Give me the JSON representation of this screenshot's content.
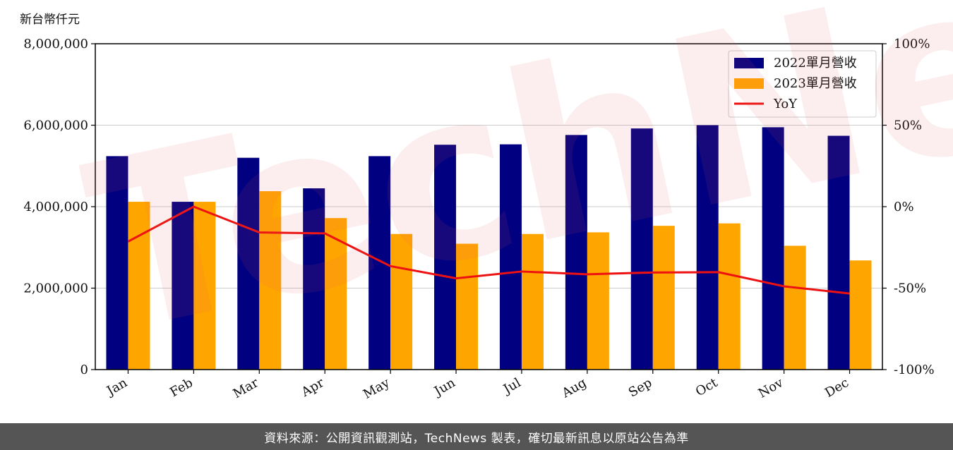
{
  "chart_data": {
    "type": "bar",
    "unit_label": "新台幣仟元",
    "categories": [
      "Jan",
      "Feb",
      "Mar",
      "Apr",
      "May",
      "Jun",
      "Jul",
      "Aug",
      "Sep",
      "Oct",
      "Nov",
      "Dec"
    ],
    "series": [
      {
        "name": "2022單月營收",
        "type": "bar",
        "axis": "left",
        "color": "#000080",
        "values": [
          5240000,
          4120000,
          5200000,
          4450000,
          5240000,
          5520000,
          5530000,
          5760000,
          5920000,
          6000000,
          5950000,
          5740000
        ]
      },
      {
        "name": "2023單月營收",
        "type": "bar",
        "axis": "left",
        "color": "#FFA500",
        "values": [
          4120000,
          4120000,
          4380000,
          3720000,
          3330000,
          3090000,
          3330000,
          3370000,
          3530000,
          3590000,
          3040000,
          2680000
        ]
      },
      {
        "name": "YoY",
        "type": "line",
        "axis": "right",
        "color": "#EE1111",
        "values": [
          -21.4,
          0.0,
          -15.8,
          -16.4,
          -36.5,
          -44.0,
          -39.8,
          -41.5,
          -40.4,
          -40.2,
          -48.9,
          -53.3
        ]
      }
    ],
    "left_axis": {
      "min": 0,
      "max": 8000000,
      "ticks": [
        {
          "v": 0,
          "label": "0"
        },
        {
          "v": 2000000,
          "label": "2,000,000"
        },
        {
          "v": 4000000,
          "label": "4,000,000"
        },
        {
          "v": 6000000,
          "label": "6,000,000"
        },
        {
          "v": 8000000,
          "label": "8,000,000"
        }
      ]
    },
    "right_axis": {
      "min": -100,
      "max": 100,
      "ticks": [
        {
          "v": -100,
          "label": "-100%"
        },
        {
          "v": -50,
          "label": "-50%"
        },
        {
          "v": 0,
          "label": "0%"
        },
        {
          "v": 50,
          "label": "50%"
        },
        {
          "v": 100,
          "label": "100%"
        }
      ]
    },
    "grid": "horizontal",
    "legend_position": "top-right"
  },
  "watermark_text": "TechNews",
  "footer": {
    "text": "資料來源：公開資訊觀測站，TechNews 製表，確切最新訊息以原站公告為準"
  }
}
